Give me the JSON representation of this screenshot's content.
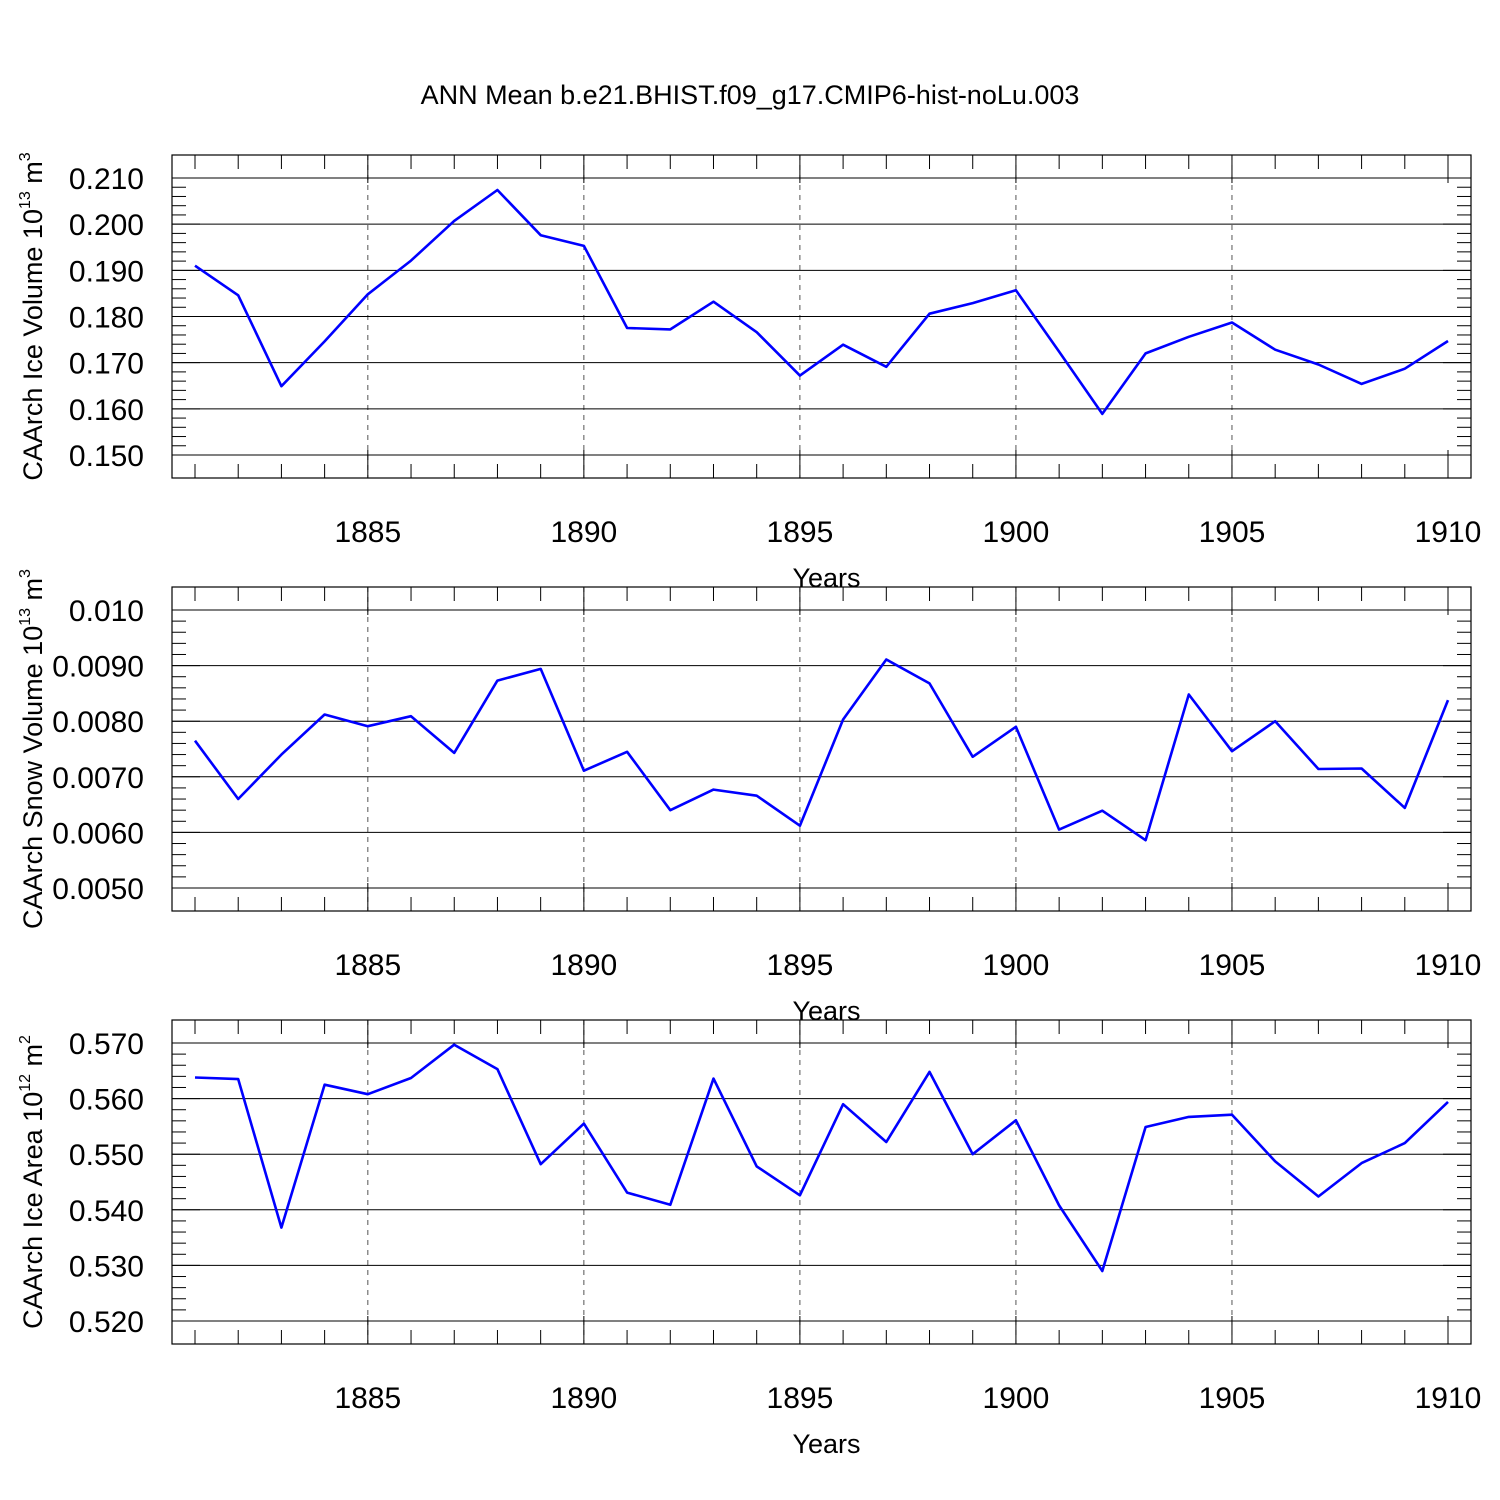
{
  "title": "ANN Mean b.e21.BHIST.f09_g17.CMIP6-hist-noLu.003",
  "colors": {
    "line": "#0000ff",
    "grid": "#555555",
    "axis": "#000000"
  },
  "chart_data": [
    {
      "type": "line",
      "ylabel": {
        "text": "CAArch Ice Volume 10",
        "exp": "13",
        "unit": " m",
        "unit_exp": "3"
      },
      "xlabel": "Years",
      "xlim": [
        1881,
        1910
      ],
      "ylim": [
        0.15,
        0.21
      ],
      "xticks": [
        1885,
        1890,
        1895,
        1900,
        1905,
        1910
      ],
      "xtick_labels": [
        "1885",
        "1890",
        "1895",
        "1900",
        "1905",
        "1910"
      ],
      "yticks": [
        0.15,
        0.16,
        0.17,
        0.18,
        0.19,
        0.2,
        0.21
      ],
      "ytick_labels": [
        "0.150",
        "0.160",
        "0.170",
        "0.180",
        "0.190",
        "0.200",
        "0.210"
      ],
      "grid": "x-dashed",
      "x": [
        1881,
        1882,
        1883,
        1884,
        1885,
        1886,
        1887,
        1888,
        1889,
        1890,
        1891,
        1892,
        1893,
        1894,
        1895,
        1896,
        1897,
        1898,
        1899,
        1900,
        1901,
        1902,
        1903,
        1904,
        1905,
        1906,
        1907,
        1908,
        1909,
        1910
      ],
      "values": [
        0.191,
        0.1846,
        0.1649,
        0.1746,
        0.1848,
        0.1921,
        0.2007,
        0.2074,
        0.1976,
        0.1953,
        0.1775,
        0.1772,
        0.1832,
        0.1766,
        0.1672,
        0.1739,
        0.1691,
        0.1806,
        0.1829,
        0.1857,
        0.1724,
        0.1589,
        0.172,
        0.1756,
        0.1787,
        0.1728,
        0.1696,
        0.1654,
        0.1687,
        0.1747
      ]
    },
    {
      "type": "line",
      "ylabel": {
        "text": "CAArch Snow Volume 10",
        "exp": "13",
        "unit": " m",
        "unit_exp": "3"
      },
      "xlabel": "Years",
      "xlim": [
        1881,
        1910
      ],
      "ylim": [
        0.005,
        0.01
      ],
      "xticks": [
        1885,
        1890,
        1895,
        1900,
        1905,
        1910
      ],
      "xtick_labels": [
        "1885",
        "1890",
        "1895",
        "1900",
        "1905",
        "1910"
      ],
      "yticks": [
        0.005,
        0.006,
        0.007,
        0.008,
        0.009,
        0.01
      ],
      "ytick_labels": [
        "0.0050",
        "0.0060",
        "0.0070",
        "0.0080",
        "0.0090",
        "0.010"
      ],
      "grid": "x-dashed",
      "x": [
        1881,
        1882,
        1883,
        1884,
        1885,
        1886,
        1887,
        1888,
        1889,
        1890,
        1891,
        1892,
        1893,
        1894,
        1895,
        1896,
        1897,
        1898,
        1899,
        1900,
        1901,
        1902,
        1903,
        1904,
        1905,
        1906,
        1907,
        1908,
        1909,
        1910
      ],
      "values": [
        0.00765,
        0.0066,
        0.0074,
        0.00812,
        0.00791,
        0.00809,
        0.00743,
        0.00873,
        0.00894,
        0.00711,
        0.00745,
        0.0064,
        0.00677,
        0.00666,
        0.00612,
        0.00803,
        0.00911,
        0.00868,
        0.00736,
        0.0079,
        0.00605,
        0.00639,
        0.00586,
        0.00848,
        0.00746,
        0.008,
        0.00714,
        0.00715,
        0.00644,
        0.00838
      ]
    },
    {
      "type": "line",
      "ylabel": {
        "text": "CAArch Ice Area 10",
        "exp": "12",
        "unit": " m",
        "unit_exp": "2"
      },
      "xlabel": "Years",
      "xlim": [
        1881,
        1910
      ],
      "ylim": [
        0.52,
        0.57
      ],
      "xticks": [
        1885,
        1890,
        1895,
        1900,
        1905,
        1910
      ],
      "xtick_labels": [
        "1885",
        "1890",
        "1895",
        "1900",
        "1905",
        "1910"
      ],
      "yticks": [
        0.52,
        0.53,
        0.54,
        0.55,
        0.56,
        0.57
      ],
      "ytick_labels": [
        "0.520",
        "0.530",
        "0.540",
        "0.550",
        "0.560",
        "0.570"
      ],
      "grid": "x-dashed",
      "x": [
        1881,
        1882,
        1883,
        1884,
        1885,
        1886,
        1887,
        1888,
        1889,
        1890,
        1891,
        1892,
        1893,
        1894,
        1895,
        1896,
        1897,
        1898,
        1899,
        1900,
        1901,
        1902,
        1903,
        1904,
        1905,
        1906,
        1907,
        1908,
        1909,
        1910
      ],
      "values": [
        0.5638,
        0.5635,
        0.5368,
        0.5625,
        0.5608,
        0.5637,
        0.5697,
        0.5653,
        0.5482,
        0.5555,
        0.5431,
        0.5409,
        0.5636,
        0.5478,
        0.5426,
        0.559,
        0.5522,
        0.5648,
        0.55,
        0.5561,
        0.5408,
        0.529,
        0.5549,
        0.5567,
        0.5571,
        0.5487,
        0.5424,
        0.5484,
        0.552,
        0.5594
      ]
    }
  ]
}
